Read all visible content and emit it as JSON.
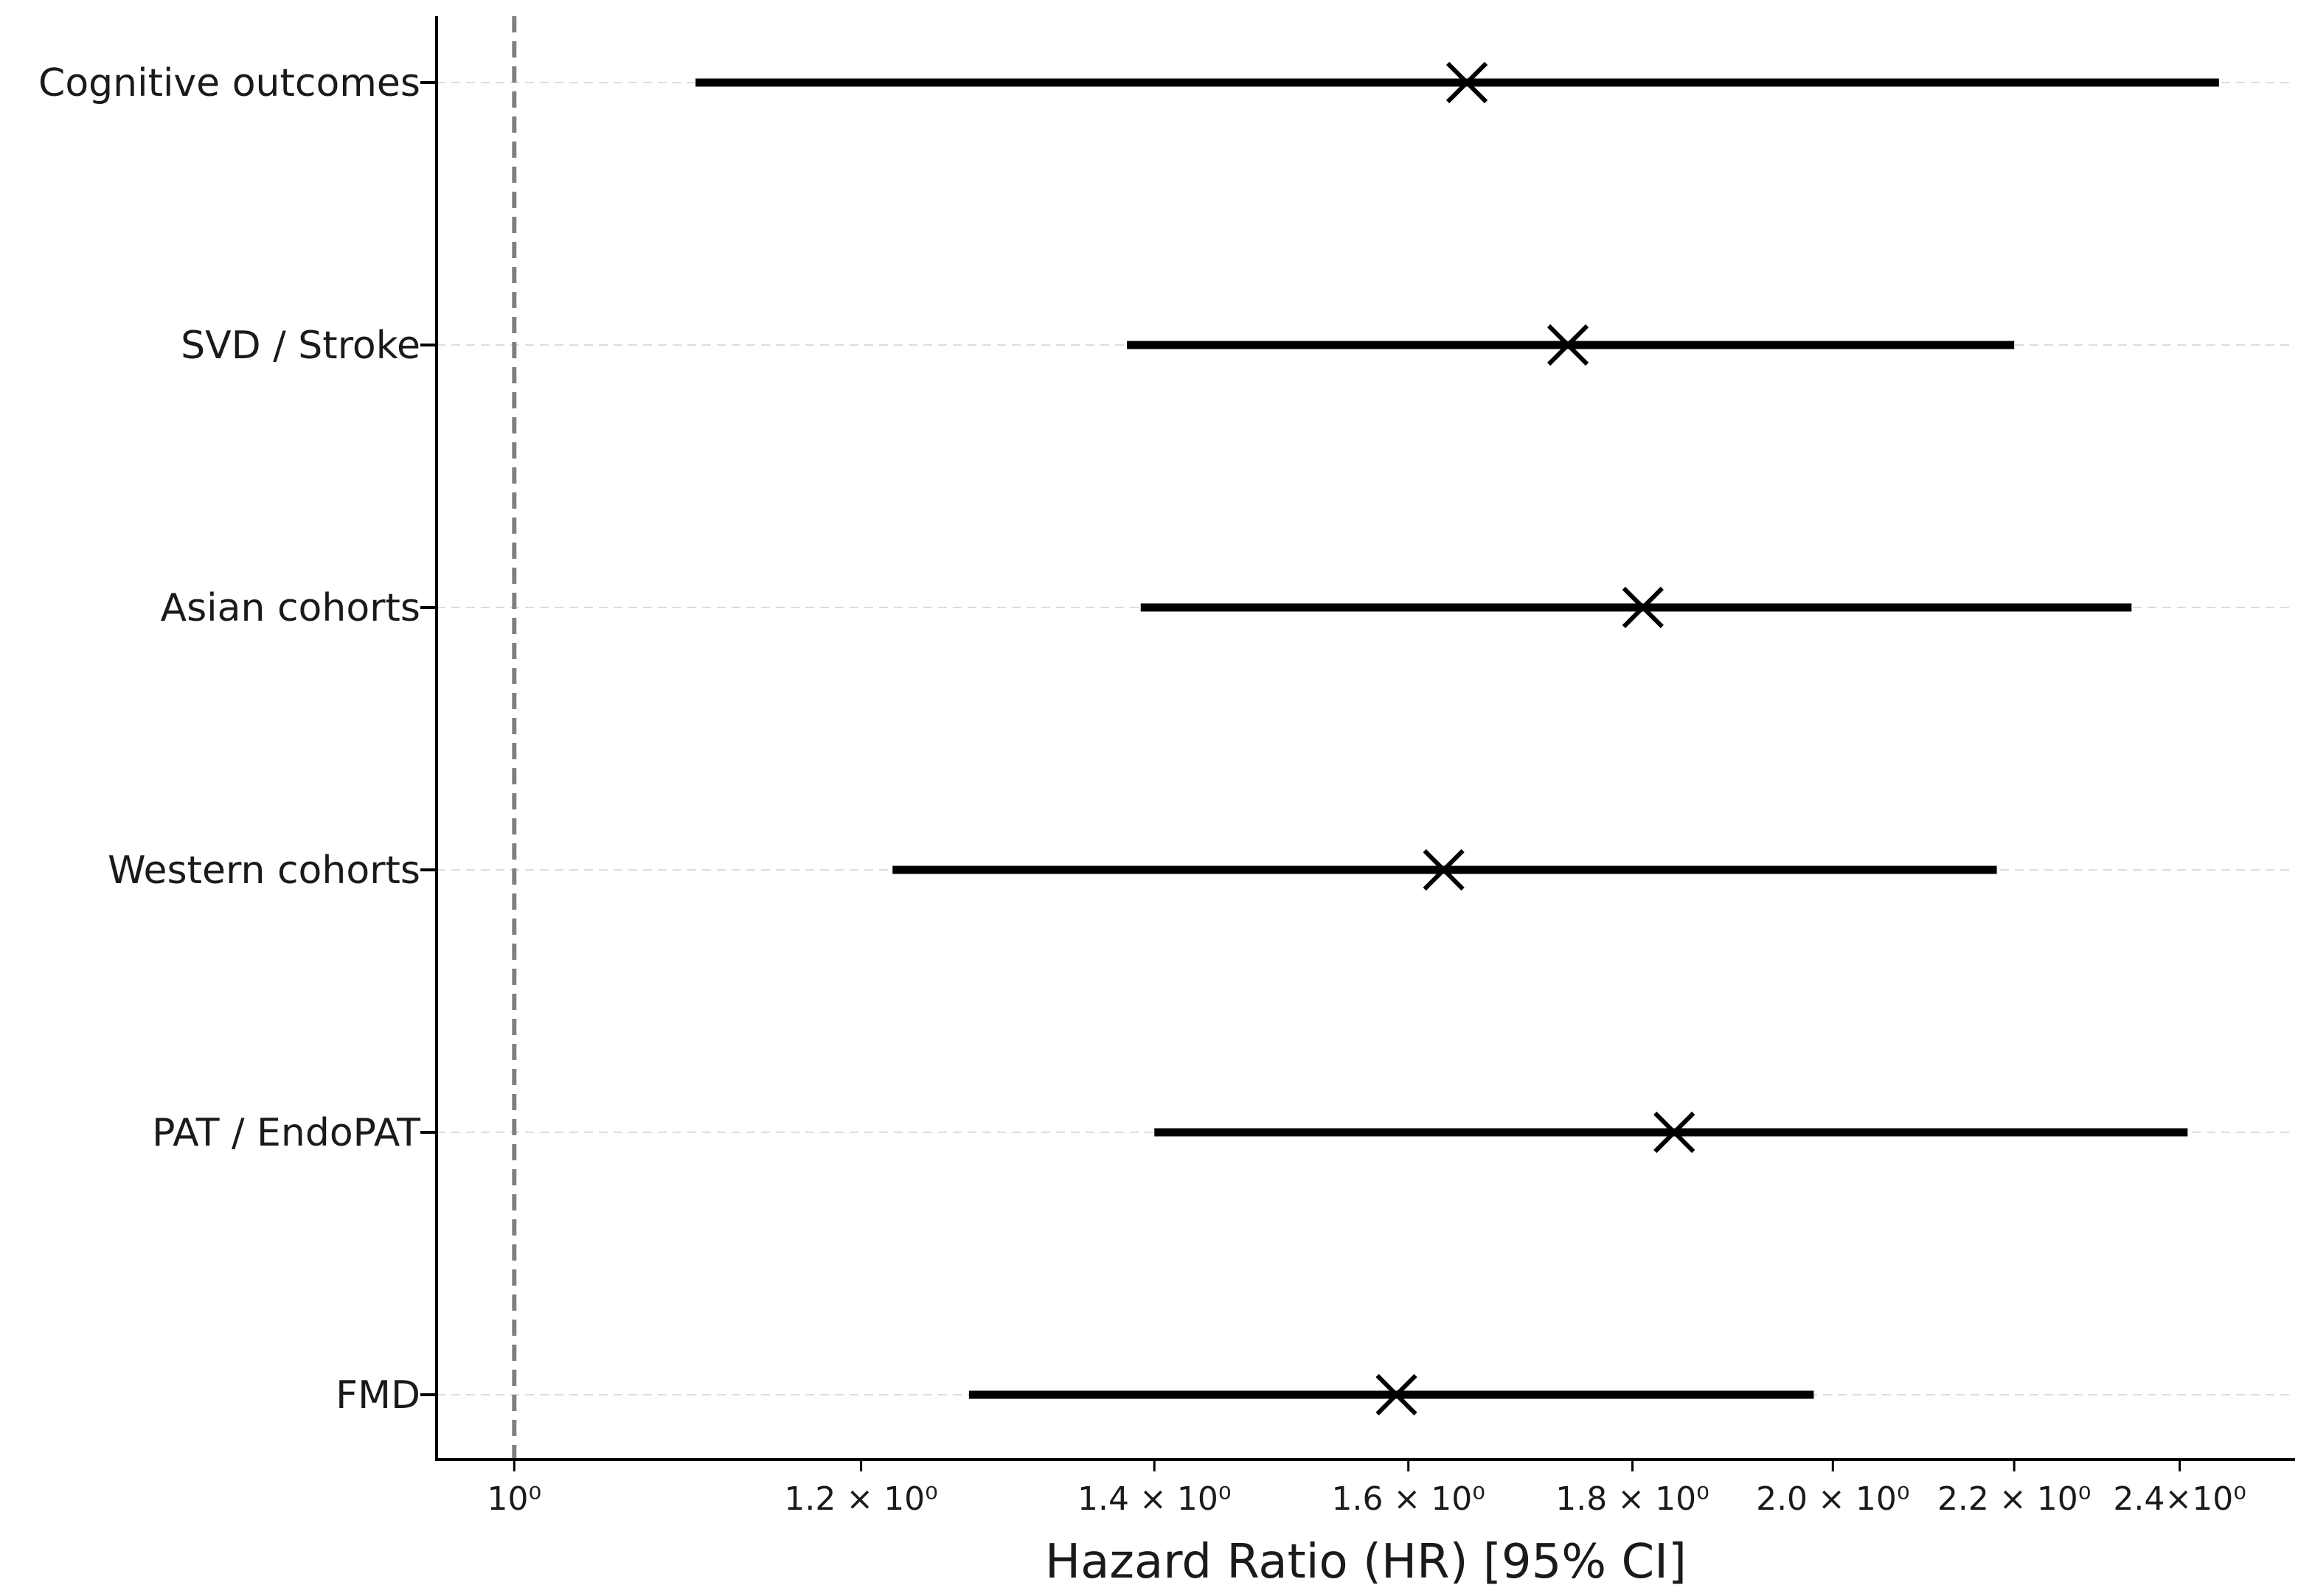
{
  "chart_data": {
    "type": "forest",
    "xlabel": "Hazard Ratio (HR) [95% CI]",
    "xscale": "log",
    "xlim": [
      0.96,
      2.55
    ],
    "x_ticks": [
      {
        "value": 1.0,
        "label": "10⁰"
      },
      {
        "value": 1.2,
        "label": "1.2 × 10⁰"
      },
      {
        "value": 1.4,
        "label": "1.4 × 10⁰"
      },
      {
        "value": 1.6,
        "label": "1.6 × 10⁰"
      },
      {
        "value": 1.8,
        "label": "1.8 × 10⁰"
      },
      {
        "value": 2.0,
        "label": "2.0 × 10⁰"
      },
      {
        "value": 2.2,
        "label": "2.2 × 10⁰"
      },
      {
        "value": 2.4,
        "label": "2.4×10⁰"
      }
    ],
    "reference_line": 1.0,
    "grid": "horizontal dashed",
    "marker": "x",
    "rows": [
      {
        "label": "Cognitive outcomes",
        "hr": 1.65,
        "ci_low": 1.1,
        "ci_high": 2.45
      },
      {
        "label": "SVD / Stroke",
        "hr": 1.74,
        "ci_low": 1.38,
        "ci_high": 2.2
      },
      {
        "label": "Asian cohorts",
        "hr": 1.81,
        "ci_low": 1.39,
        "ci_high": 2.34
      },
      {
        "label": "Western cohorts",
        "hr": 1.63,
        "ci_low": 1.22,
        "ci_high": 2.18
      },
      {
        "label": "PAT / EndoPAT",
        "hr": 1.84,
        "ci_low": 1.4,
        "ci_high": 2.41
      },
      {
        "label": "FMD",
        "hr": 1.59,
        "ci_low": 1.27,
        "ci_high": 1.98
      }
    ]
  }
}
